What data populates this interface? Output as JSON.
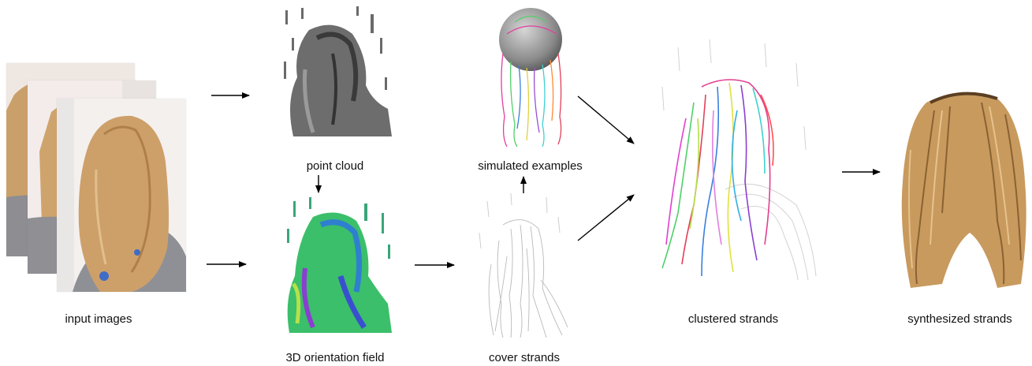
{
  "labels": {
    "input_images": "input images",
    "point_cloud": "point cloud",
    "orientation_field": "3D orientation field",
    "simulated_examples": "simulated examples",
    "cover_strands": "cover strands",
    "clustered_strands": "clustered strands",
    "synthesized_strands": "synthesized strands"
  },
  "colors": {
    "arrow": "#000000",
    "hair_blonde": "#c89a5e",
    "hair_dark": "#8a6232",
    "gray_strands": "#b9b9b9",
    "point_cloud": "#555555",
    "orientation_green": "#3bbf6a",
    "orientation_blue": "#3a4fd0",
    "sphere": "#8a8a8a"
  },
  "icons": [
    "photo-stack-image",
    "point-cloud-image",
    "orientation-field-image",
    "simulated-examples-image",
    "cover-strands-image",
    "clustered-strands-image",
    "synthesized-strands-image"
  ]
}
